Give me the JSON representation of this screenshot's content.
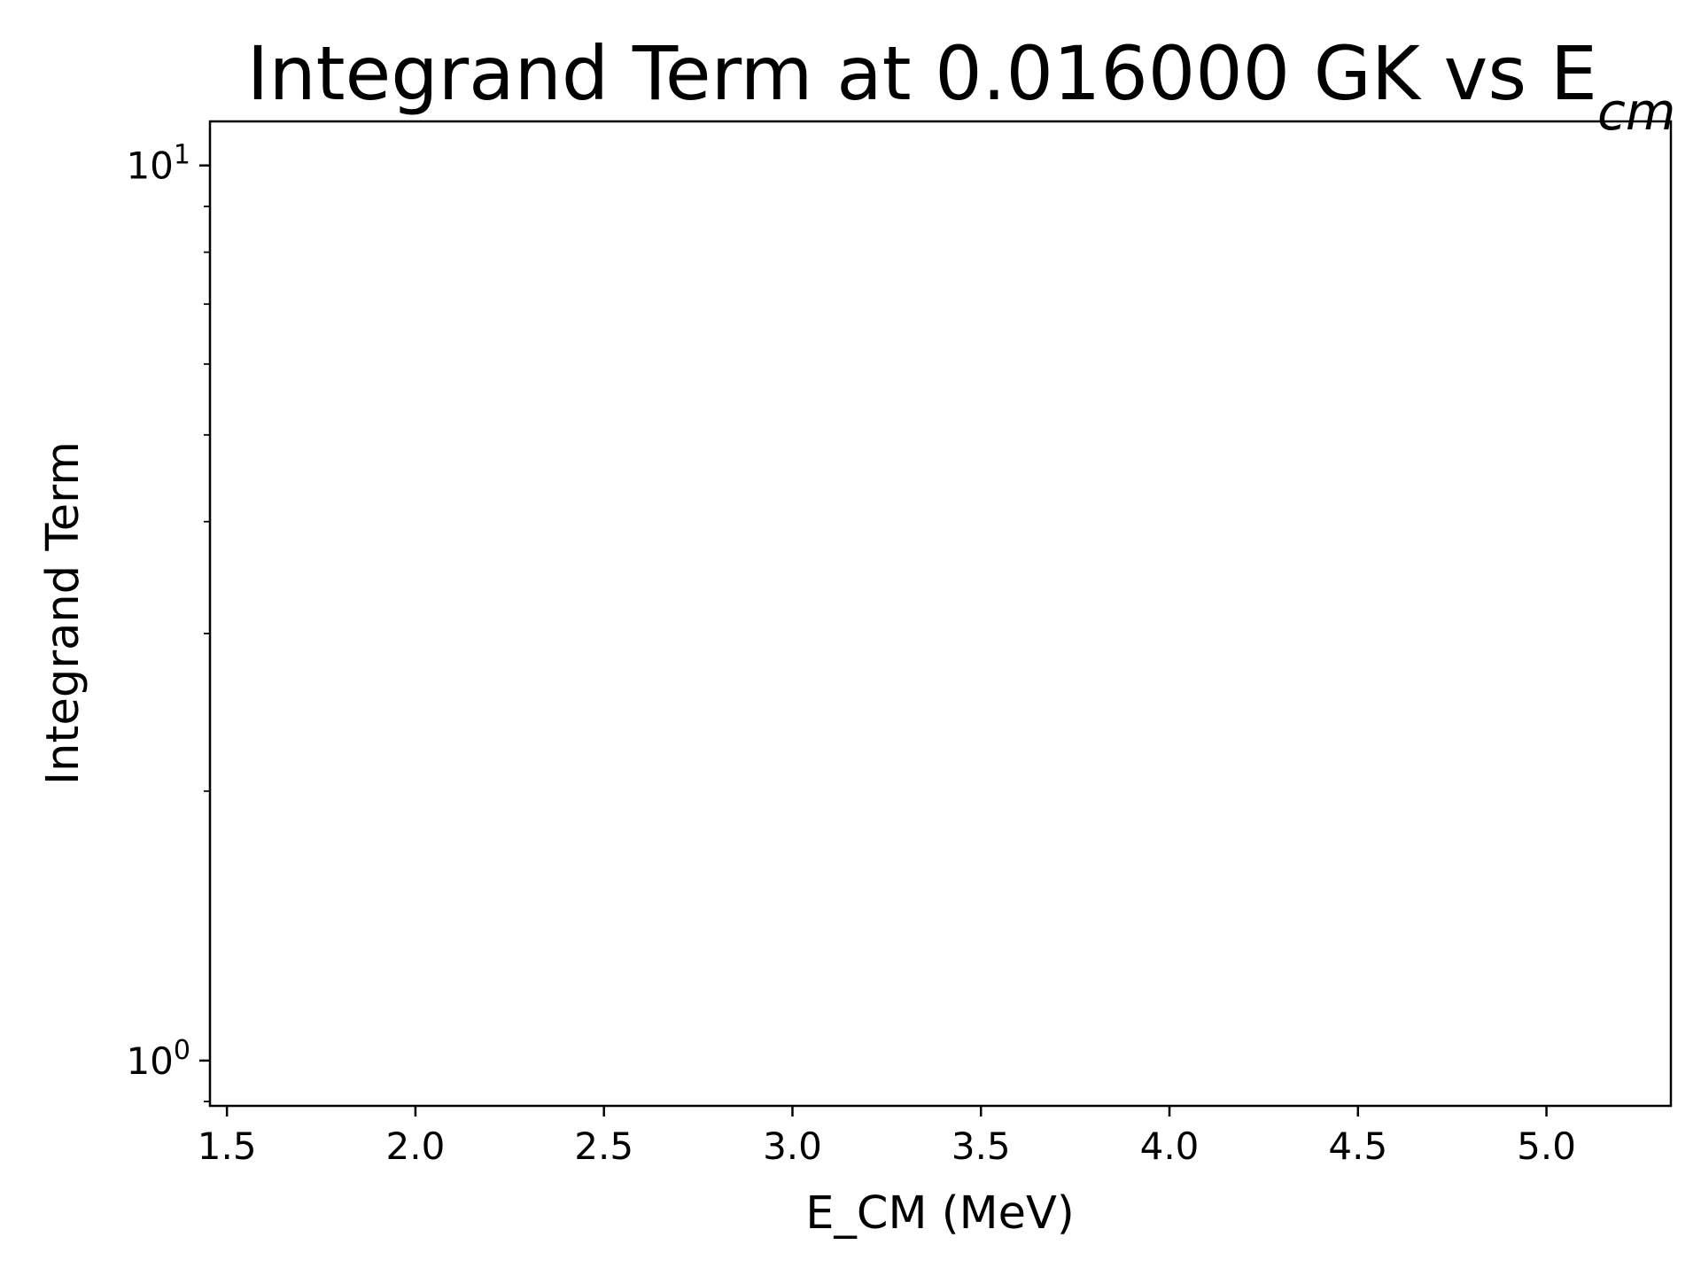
{
  "chart_data": {
    "type": "line",
    "title": "Integrand Term at 0.016000 GK vs E",
    "title_subscript": "cm",
    "xlabel": "E_CM (MeV)",
    "ylabel": "Integrand Term",
    "xlim": [
      1.455,
      5.33
    ],
    "ylim": [
      0.89,
      11.2
    ],
    "yscale": "log",
    "grid": false,
    "series": [
      {
        "x": [],
        "y": []
      }
    ],
    "x_ticks": [
      {
        "value": 1.5,
        "label": "1.5"
      },
      {
        "value": 2.0,
        "label": "2.0"
      },
      {
        "value": 2.5,
        "label": "2.5"
      },
      {
        "value": 3.0,
        "label": "3.0"
      },
      {
        "value": 3.5,
        "label": "3.5"
      },
      {
        "value": 4.0,
        "label": "4.0"
      },
      {
        "value": 4.5,
        "label": "4.5"
      },
      {
        "value": 5.0,
        "label": "5.0"
      }
    ],
    "y_ticks": [
      {
        "value": 1,
        "base": "10",
        "exponent": "0"
      },
      {
        "value": 10,
        "base": "10",
        "exponent": "1"
      }
    ],
    "y_minor_ticks": [
      0.9,
      2,
      3,
      4,
      5,
      6,
      7,
      8,
      9
    ]
  }
}
